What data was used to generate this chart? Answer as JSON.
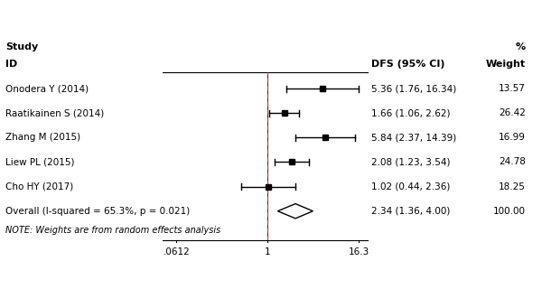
{
  "studies": [
    "Onodera Y (2014)",
    "Raatikainen S (2014)",
    "Zhang M (2015)",
    "Liew PL (2015)",
    "Cho HY (2017)"
  ],
  "estimates": [
    5.36,
    1.66,
    5.84,
    2.08,
    1.02
  ],
  "ci_low": [
    1.76,
    1.06,
    2.37,
    1.23,
    0.44
  ],
  "ci_high": [
    16.34,
    2.62,
    14.39,
    3.54,
    2.36
  ],
  "weights_text": [
    "13.57",
    "26.42",
    "16.99",
    "24.78",
    "18.25"
  ],
  "ci_texts": [
    "5.36 (1.76, 16.34)",
    "1.66 (1.06, 2.62)",
    "5.84 (2.37, 14.39)",
    "2.08 (1.23, 3.54)",
    "1.02 (0.44, 2.36)"
  ],
  "overall_estimate": 2.34,
  "overall_ci_low": 1.36,
  "overall_ci_high": 4.0,
  "overall_text": "2.34 (1.36, 4.00)",
  "overall_weight": "100.00",
  "overall_label": "Overall (I-squared = 65.3%, p = 0.021)",
  "note_text": "NOTE: Weights are from random effects analysis",
  "col_header1": "Study",
  "col_header2": "%",
  "col_header3": "ID",
  "col_header4": "DFS (95% CI)",
  "col_header5": "Weight",
  "xaxis_ticks": [
    0.0612,
    1,
    16.3
  ],
  "xaxis_tick_labels": [
    ".0612",
    "1",
    "16.3"
  ],
  "xmin": 0.04,
  "xmax": 22,
  "background_color": "#ffffff",
  "text_color": "#000000",
  "ci_line_color": "#000000",
  "dashed_line_color": "#cc4444",
  "diamond_color": "#ffffff",
  "diamond_edge_color": "#000000",
  "marker_color": "#000000"
}
